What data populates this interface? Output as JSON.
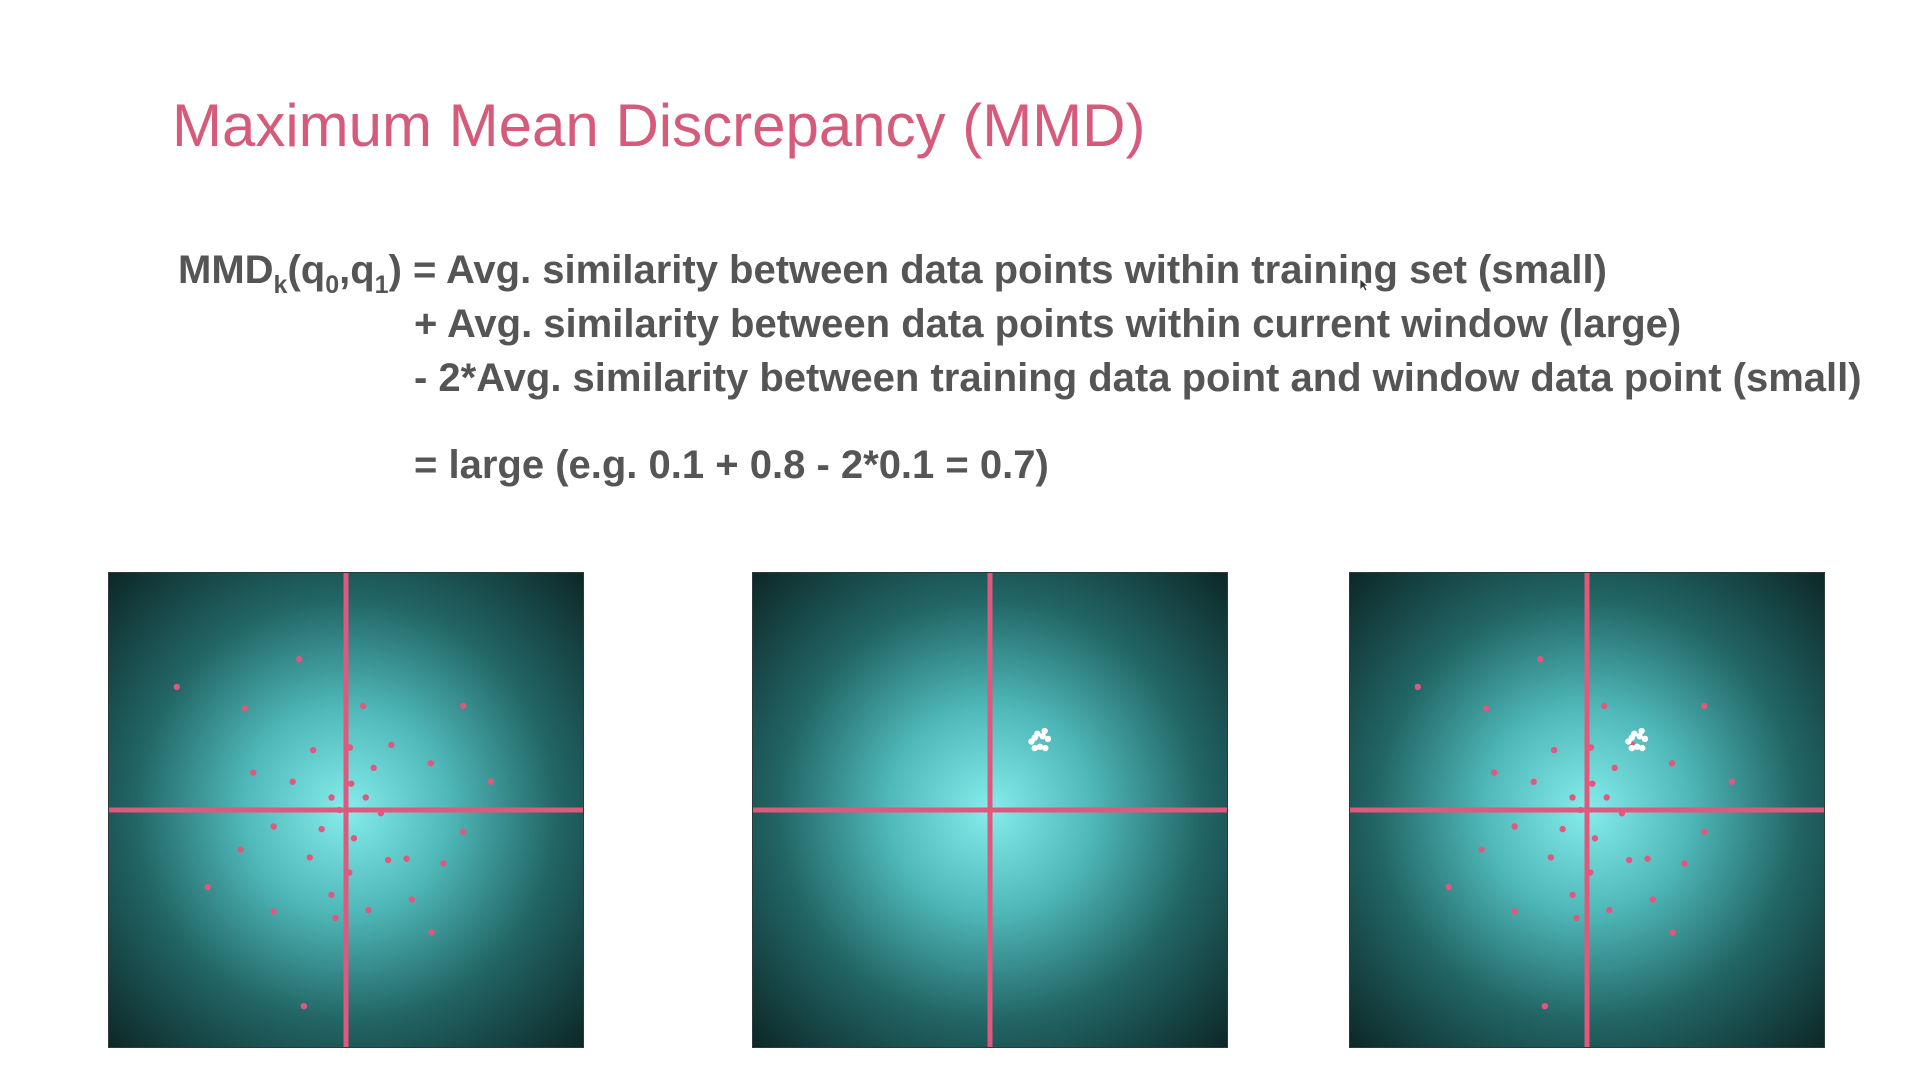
{
  "slide": {
    "title": "Maximum Mean Discrepancy (MMD)"
  },
  "formula": {
    "lhs_base": "MMD",
    "lhs_sub_k": "k",
    "lhs_open": "(q",
    "lhs_sub_0": "0",
    "lhs_comma": ",q",
    "lhs_sub_1": "1",
    "lhs_close": ")",
    "term1": " = Avg. similarity between data points within training set (small)",
    "term2": "+ Avg. similarity between data points within current window (large)",
    "term3": "- 2*Avg. similarity between training data point and window data point (small)",
    "result": "= large (e.g. 0.1 + 0.8 - 2*0.1 = 0.7)"
  },
  "colors": {
    "title": "#d65a7a",
    "text": "#555555",
    "axis": "#e0587c",
    "training_point": "#e0587c",
    "window_point": "#ffffff",
    "glow_center": "#86ecec",
    "glow_edge": "#0c2424"
  },
  "panels": [
    {
      "name": "training-set-panel",
      "show_training": true,
      "show_window": false
    },
    {
      "name": "current-window-panel",
      "show_training": false,
      "show_window": true
    },
    {
      "name": "combined-panel",
      "show_training": true,
      "show_window": true
    }
  ],
  "points": {
    "training": [
      [
        -2.57,
        1.87
      ],
      [
        -0.71,
        2.29
      ],
      [
        -1.53,
        1.54
      ],
      [
        0.26,
        1.58
      ],
      [
        1.78,
        1.58
      ],
      [
        -0.5,
        0.91
      ],
      [
        0.06,
        0.95
      ],
      [
        0.69,
        0.99
      ],
      [
        -1.41,
        0.57
      ],
      [
        -0.81,
        0.43
      ],
      [
        0.42,
        0.64
      ],
      [
        1.29,
        0.71
      ],
      [
        0.08,
        0.4
      ],
      [
        -0.22,
        0.19
      ],
      [
        0.3,
        0.19
      ],
      [
        2.2,
        0.43
      ],
      [
        -0.1,
        0.0
      ],
      [
        0.53,
        -0.05
      ],
      [
        -1.1,
        -0.25
      ],
      [
        -0.37,
        -0.29
      ],
      [
        0.12,
        -0.43
      ],
      [
        1.78,
        -0.33
      ],
      [
        -1.6,
        -0.6
      ],
      [
        -0.55,
        -0.72
      ],
      [
        0.64,
        -0.76
      ],
      [
        0.92,
        -0.74
      ],
      [
        1.48,
        -0.81
      ],
      [
        0.05,
        -0.95
      ],
      [
        -2.1,
        -1.17
      ],
      [
        -0.22,
        -1.29
      ],
      [
        -1.1,
        -1.54
      ],
      [
        0.34,
        -1.52
      ],
      [
        1.0,
        -1.36
      ],
      [
        -0.16,
        -1.64
      ],
      [
        1.3,
        -1.86
      ],
      [
        -0.64,
        -2.98
      ]
    ],
    "window": [
      [
        0.63,
        1.04
      ],
      [
        0.68,
        1.1
      ],
      [
        0.72,
        1.16
      ],
      [
        0.8,
        1.12
      ],
      [
        0.83,
        1.2
      ],
      [
        0.88,
        1.08
      ],
      [
        0.76,
        0.96
      ],
      [
        0.84,
        0.94
      ],
      [
        0.68,
        0.94
      ]
    ],
    "xlim": [
      -3.6,
      3.6
    ],
    "ylim": [
      -3.6,
      3.6
    ]
  }
}
